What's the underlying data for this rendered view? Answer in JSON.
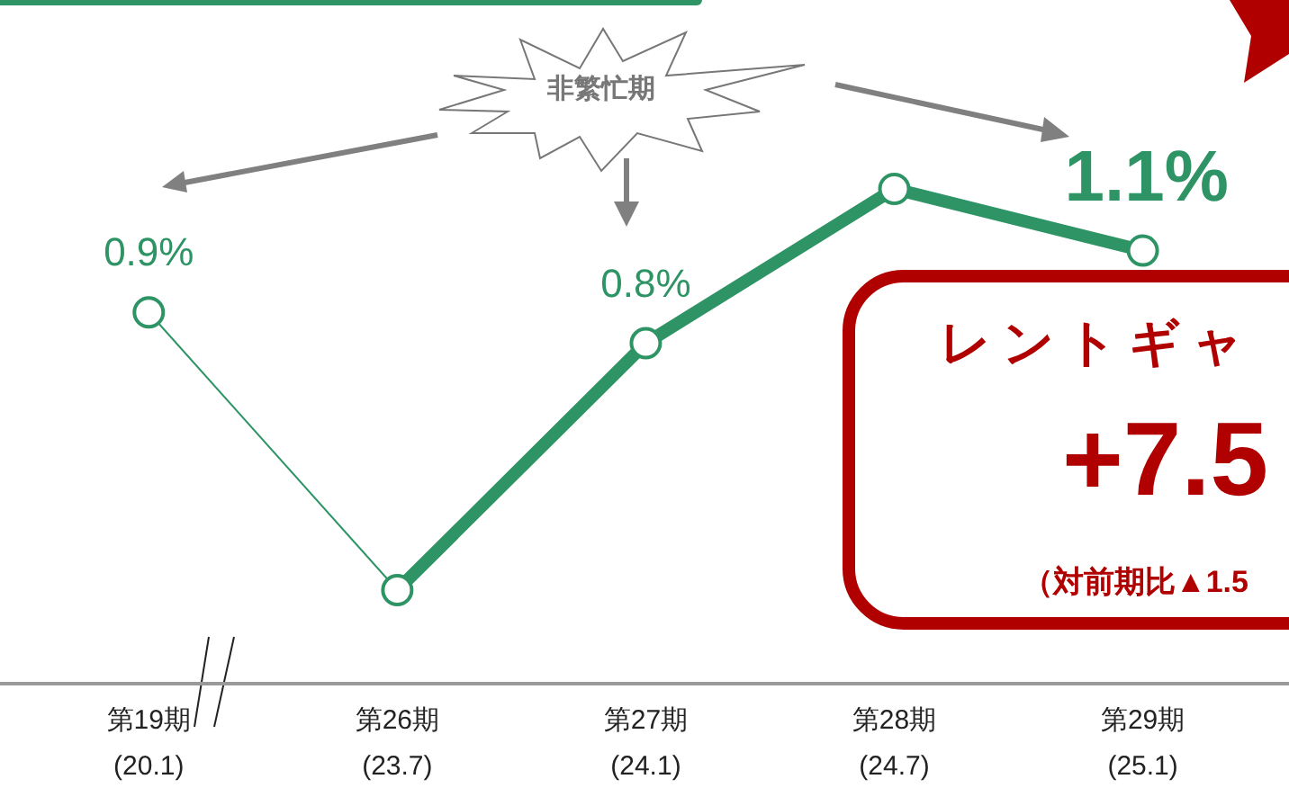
{
  "chart_data": {
    "type": "line",
    "categories": [
      "第19期\n(20.1)",
      "第26期\n(23.7)",
      "第27期\n(24.1)",
      "第28期\n(24.7)",
      "第29期\n(25.1)"
    ],
    "series": [
      {
        "color": "#2e9465",
        "values": [
          0.9,
          0.0,
          0.8,
          1.3,
          1.1
        ],
        "value_labels": [
          "0.9%",
          null,
          "0.8%",
          null,
          "1.1%"
        ]
      }
    ],
    "marker": "circle",
    "grid": false,
    "legend": false,
    "tick_labels": "x",
    "annotations": [
      "非繁忙期",
      "レントギャ",
      "+7.5",
      "（対前期比▲1.5"
    ]
  }
}
